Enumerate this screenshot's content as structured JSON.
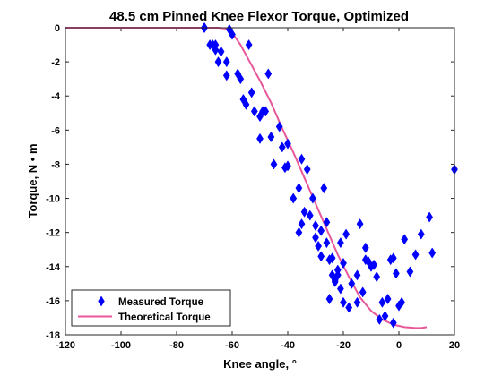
{
  "chart_data": {
    "type": "scatter",
    "title": "48.5 cm Pinned Knee Flexor Torque, Optimized",
    "xlabel": "Knee angle, °",
    "ylabel": "Torque, N • m",
    "xlim": [
      -120,
      20
    ],
    "ylim": [
      -18,
      0
    ],
    "x_ticks": [
      -120,
      -100,
      -80,
      -60,
      -40,
      -20,
      0,
      20
    ],
    "y_ticks": [
      0,
      -2,
      -4,
      -6,
      -8,
      -10,
      -12,
      -14,
      -16,
      -18
    ],
    "grid": false,
    "legend_position": "bottom-left",
    "series": [
      {
        "name": "Measured Torque",
        "style": "markers",
        "marker": "diamond",
        "color": "#0000ff",
        "x": [
          -70,
          -70,
          -68,
          -67,
          -66,
          -66,
          -65,
          -64,
          -62,
          -62,
          -61,
          -60,
          -58,
          -57,
          -56,
          -55,
          -54,
          -53,
          -52,
          -50,
          -50,
          -49,
          -48,
          -47,
          -46,
          -45,
          -43,
          -42,
          -41,
          -40,
          -40,
          -38,
          -36,
          -36,
          -35,
          -35,
          -34,
          -33,
          -32,
          -31,
          -30,
          -30,
          -29,
          -28,
          -28,
          -27,
          -26,
          -26,
          -25,
          -25,
          -24,
          -24,
          -23,
          -23,
          -22,
          -22,
          -21,
          -21,
          -20,
          -20,
          -19,
          -18,
          -17,
          -15,
          -15,
          -14,
          -13,
          -12,
          -12,
          -11,
          -10,
          -9,
          -8,
          -7,
          -6,
          -5,
          -4,
          -3,
          -2,
          -2,
          -1,
          0,
          1,
          2,
          4,
          6,
          8,
          11,
          12,
          20
        ],
        "y": [
          0,
          0,
          -1,
          -1,
          -1,
          -1.3,
          -2,
          -1.4,
          -2,
          -2.8,
          -0.1,
          -0.4,
          -2.7,
          -3,
          -4.2,
          -4.5,
          -1,
          -3.8,
          -4.9,
          -5.2,
          -6.5,
          -4.9,
          -4.9,
          -2.7,
          -6.4,
          -8,
          -5.8,
          -7,
          -8.2,
          -8.1,
          -6.8,
          -10,
          -12,
          -9.4,
          -11.5,
          -7.7,
          -10.8,
          -8.3,
          -11,
          -10,
          -12.3,
          -11.6,
          -12.8,
          -11.9,
          -13.4,
          -9.4,
          -11.4,
          -12.6,
          -15.9,
          -13.6,
          -13.5,
          -14.5,
          -14.8,
          -14.9,
          -14.5,
          -14.2,
          -12.6,
          -15.3,
          -13.8,
          -16.1,
          -12.1,
          -16.4,
          -15,
          -14.5,
          -16.1,
          -11.5,
          -15.5,
          -12.9,
          -13.6,
          -13.7,
          -14,
          -13.9,
          -14.6,
          -17.1,
          -16.1,
          -16.9,
          -15.9,
          -13.6,
          -13.5,
          -17.3,
          -14.4,
          -16.3,
          -16.1,
          -12.4,
          -14.3,
          -13.3,
          -12.1,
          -11.1,
          -13.2,
          -8.3
        ]
      },
      {
        "name": "Theoretical Torque",
        "style": "line",
        "color": "#e8579a",
        "x": [
          -120,
          -110,
          -100,
          -90,
          -80,
          -70,
          -65,
          -62,
          -60,
          -57,
          -54,
          -50,
          -46,
          -42,
          -38,
          -34,
          -30,
          -26,
          -22,
          -18,
          -14,
          -10,
          -6,
          -2,
          2,
          6,
          8,
          10
        ],
        "y": [
          0,
          0,
          0,
          0,
          0,
          0,
          0,
          -0.05,
          -0.3,
          -1,
          -1.9,
          -3.1,
          -4.4,
          -5.9,
          -7.3,
          -8.8,
          -10.3,
          -11.8,
          -13.3,
          -14.6,
          -15.8,
          -16.6,
          -17.1,
          -17.4,
          -17.55,
          -17.6,
          -17.6,
          -17.55
        ]
      }
    ]
  }
}
